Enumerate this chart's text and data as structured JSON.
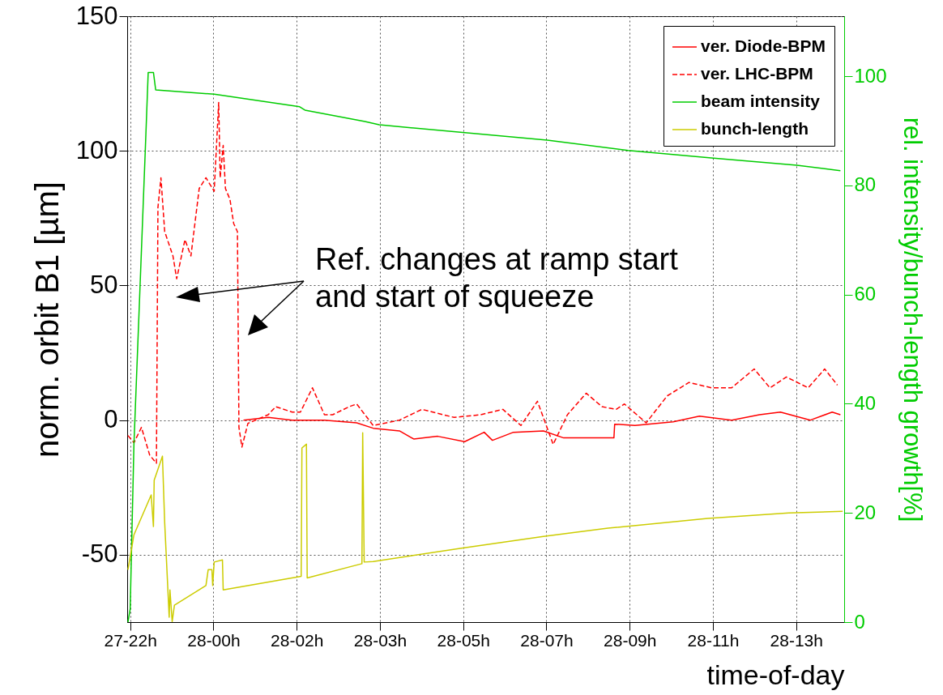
{
  "chart_data": {
    "type": "line",
    "xlabel": "time-of-day",
    "ylabel": "norm. orbit B1 [µm]",
    "y2label": "rel. intensity/bunch-length growth[%]",
    "annotations": [
      "Ref. changes at ramp start\nand start of squeeze"
    ],
    "xlim": [
      "--01-27T22:20",
      "--01-28T14:16"
    ],
    "xticks": [
      {
        "value": "--01-27T22:24",
        "label": "27-22h"
      },
      {
        "value": "--01-28T00:15",
        "label": "28-00h"
      },
      {
        "value": "--01-28T02:06",
        "label": "28-02h"
      },
      {
        "value": "--01-28T03:57",
        "label": "28-03h"
      },
      {
        "value": "--01-28T05:48",
        "label": "28-05h"
      },
      {
        "value": "--01-28T07:39",
        "label": "28-07h"
      },
      {
        "value": "--01-28T09:30",
        "label": "28-09h"
      },
      {
        "value": "--01-28T11:21",
        "label": "28-11h"
      },
      {
        "value": "--01-28T13:12",
        "label": "28-13h"
      }
    ],
    "ylim": [
      -75,
      150
    ],
    "yticks": [
      -50,
      0,
      50,
      100,
      150
    ],
    "y2lim": [
      0,
      111
    ],
    "y2ticks": [
      0,
      20,
      40,
      60,
      80,
      100
    ],
    "grid": true,
    "legend": "top right",
    "series": [
      {
        "name": "ver. Diode-BPM",
        "color": "#ff0000",
        "line_style": "solid",
        "x": [
          "--01-28T00:55",
          "--01-28T01:28",
          "--01-28T02:00",
          "--01-28T02:43",
          "--01-28T03:26",
          "--01-28T03:48",
          "--01-28T04:23",
          "--01-28T04:42",
          "--01-28T05:14",
          "--01-28T05:50",
          "--01-28T06:16",
          "--01-28T06:27",
          "--01-28T06:55",
          "--01-28T07:35",
          "--01-28T08:02",
          "--01-28T09:09",
          "--01-28T09:10",
          "--01-28T09:37",
          "--01-28T10:28",
          "--01-28T11:03",
          "--01-28T11:46",
          "--01-28T12:23",
          "--01-28T12:51",
          "--01-28T13:31",
          "--01-28T14:00",
          "--01-28T14:11"
        ],
        "values": [
          0,
          1,
          0,
          0,
          -1,
          -3,
          -4,
          -7,
          -6,
          -8,
          -4.5,
          -7.5,
          -4.5,
          -4,
          -6.6,
          -6.6,
          -1.5,
          -2,
          -0.6,
          1.5,
          0,
          2,
          3,
          0,
          3,
          2
        ]
      },
      {
        "name": "ver. LHC-BPM",
        "color": "#ff0000",
        "line_style": "dashed",
        "x": [
          "--01-27T22:21",
          "--01-27T22:29",
          "--01-27T22:39",
          "--01-27T22:50",
          "--01-27T22:59",
          "--01-27T23:01",
          "--01-27T23:05",
          "--01-27T23:10",
          "--01-27T23:21",
          "--01-27T23:26",
          "--01-27T23:37",
          "--01-27T23:45",
          "--01-27T23:56",
          "--01-28T00:05",
          "--01-28T00:16",
          "--01-28T00:22",
          "--01-28T00:24",
          "--01-28T00:28",
          "--01-28T00:31",
          "--01-28T00:37",
          "--01-28T00:42",
          "--01-28T00:47",
          "--01-28T00:49",
          "--01-28T00:53",
          "--01-28T01:01",
          "--01-28T01:28",
          "--01-28T01:38",
          "--01-28T02:00",
          "--01-28T02:11",
          "--01-28T02:27",
          "--01-28T02:43",
          "--01-28T02:54",
          "--01-28T03:16",
          "--01-28T03:26",
          "--01-28T03:48",
          "--01-28T04:23",
          "--01-28T04:53",
          "--01-28T05:36",
          "--01-28T06:11",
          "--01-28T06:41",
          "--01-28T07:05",
          "--01-28T07:27",
          "--01-28T07:48",
          "--01-28T08:07",
          "--01-28T08:32",
          "--01-28T08:53",
          "--01-28T09:12",
          "--01-28T09:23",
          "--01-28T09:52",
          "--01-28T10:20",
          "--01-28T10:49",
          "--01-28T11:19",
          "--01-28T11:46",
          "--01-28T12:16",
          "--01-28T12:37",
          "--01-28T12:59",
          "--01-28T13:28",
          "--01-28T13:50",
          "--01-28T14:07"
        ],
        "values": [
          -5.7,
          -8.4,
          -2.7,
          -13,
          -16,
          79,
          90,
          70,
          61,
          52.5,
          67,
          61,
          86,
          90,
          85,
          118,
          90,
          102,
          86,
          82,
          73,
          70,
          -2.7,
          -10,
          -1.2,
          2,
          5,
          3,
          3,
          12,
          2,
          2,
          5,
          6,
          -2,
          0,
          4,
          1,
          2,
          4,
          -2,
          7,
          -9,
          2,
          10,
          5,
          4,
          6,
          -1,
          9,
          14,
          12,
          12,
          19,
          12,
          16,
          12,
          19,
          13
        ]
      },
      {
        "name": "beam intensity",
        "color": "#00cc00",
        "line_style": "solid",
        "axis": "y2",
        "x": [
          "--01-27T22:21",
          "--01-27T22:24",
          "--01-27T22:29",
          "--01-27T22:37",
          "--01-27T22:44",
          "--01-27T22:48",
          "--01-27T22:55",
          "--01-27T22:58",
          "--01-28T00:16",
          "--01-28T02:10",
          "--01-28T02:17",
          "--01-28T03:37",
          "--01-28T03:56",
          "--01-28T07:40",
          "--01-28T09:28",
          "--01-28T11:22",
          "--01-28T13:13",
          "--01-28T14:11"
        ],
        "values": [
          0,
          2.4,
          32.6,
          61,
          86,
          100.7,
          100.7,
          97.5,
          96.7,
          94.4,
          93.8,
          91.7,
          91.1,
          88.3,
          86.4,
          85,
          83.7,
          82.7
        ]
      },
      {
        "name": "bunch-length",
        "color": "#cccc00",
        "line_style": "solid",
        "axis": "y2",
        "x": [
          "--01-27T22:21",
          "--01-27T22:29",
          "--01-27T22:52",
          "--01-27T22:55",
          "--01-27T22:56",
          "--01-27T23:07",
          "--01-27T23:10",
          "--01-27T23:16",
          "--01-27T23:17",
          "--01-27T23:20",
          "--01-27T23:23",
          "--01-28T00:05",
          "--01-28T00:08",
          "--01-28T00:13",
          "--01-28T00:14",
          "--01-28T00:16",
          "--01-28T00:27",
          "--01-28T00:28",
          "--01-28T02:12",
          "--01-28T02:13",
          "--01-28T02:19",
          "--01-28T02:20",
          "--01-28T03:33",
          "--01-28T03:34",
          "--01-28T03:36",
          "--01-28T03:48",
          "--01-28T05:44",
          "--01-28T07:35",
          "--01-28T09:01",
          "--01-28T11:14",
          "--01-28T13:02",
          "--01-28T14:14"
        ],
        "values": [
          9.6,
          16,
          23.3,
          17.5,
          26,
          30.4,
          18.2,
          0.9,
          5.9,
          0.1,
          3.1,
          6.7,
          9.6,
          9.6,
          6.7,
          11,
          11.4,
          5.9,
          8.4,
          31.9,
          32.6,
          8.1,
          10.7,
          34.7,
          11,
          11.1,
          13.5,
          15.7,
          17.2,
          19,
          20,
          20.3
        ]
      }
    ]
  }
}
